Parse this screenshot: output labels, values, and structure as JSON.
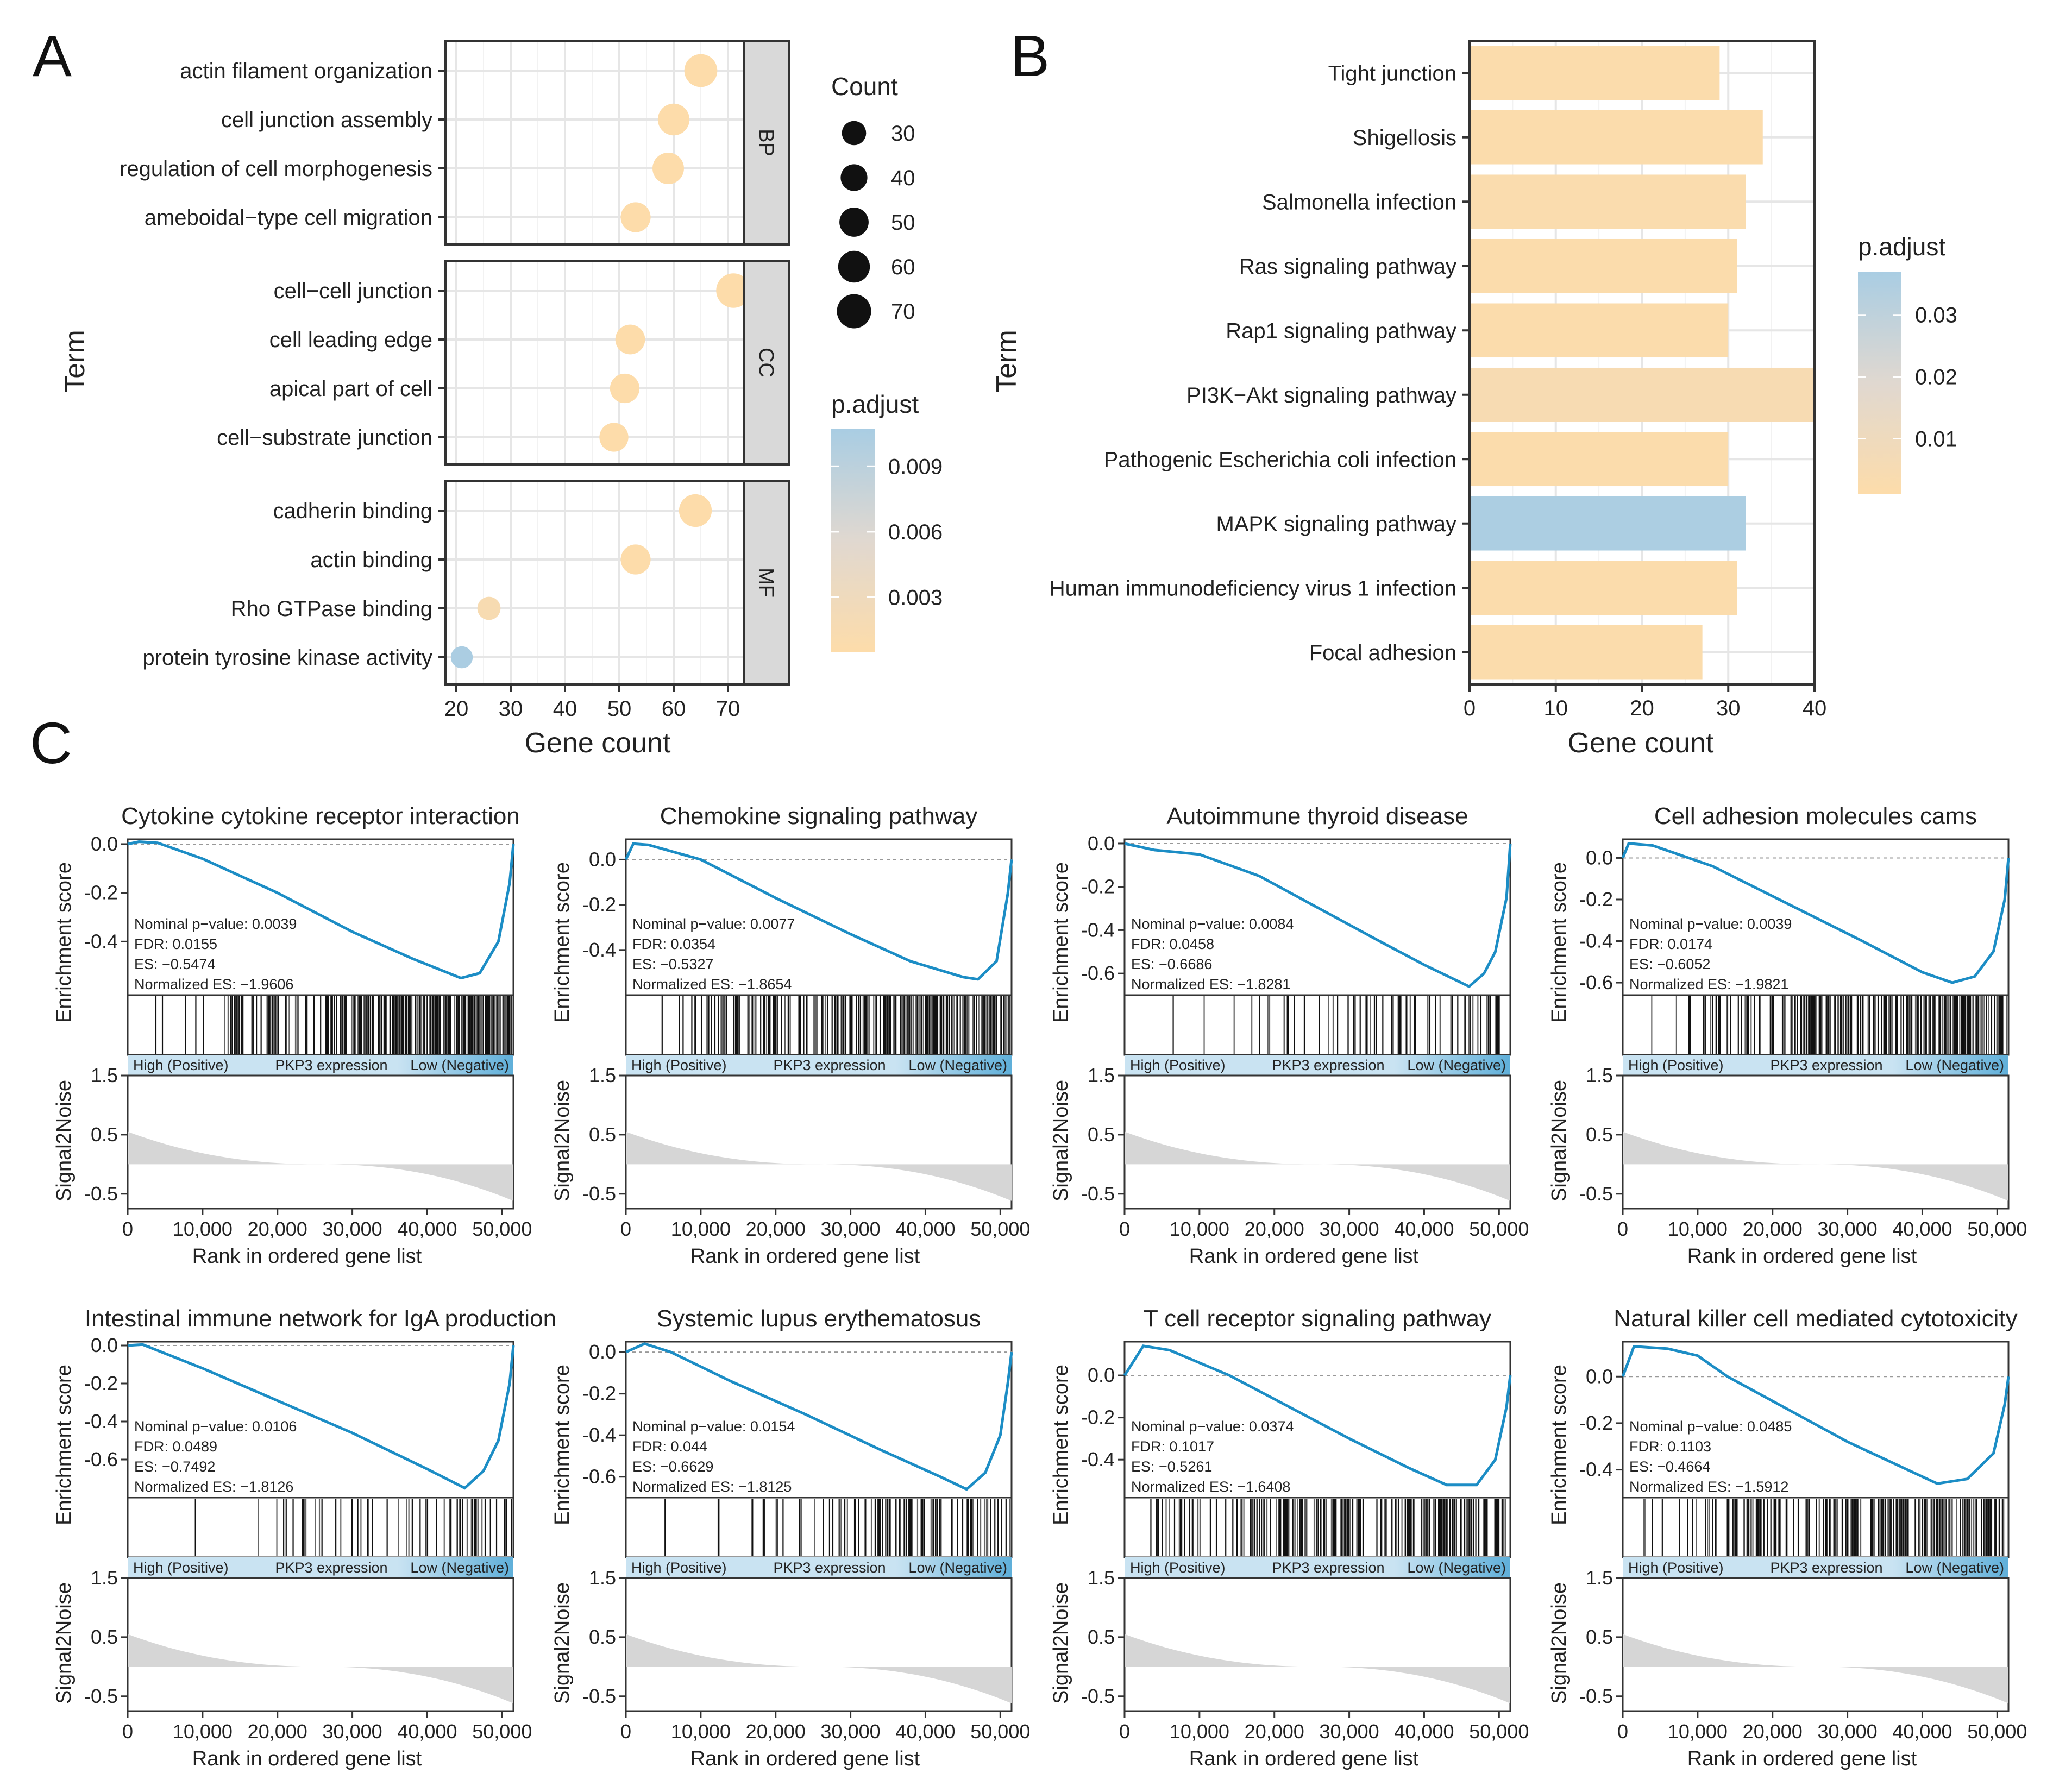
{
  "panels": {
    "A": {
      "label": "A"
    },
    "B": {
      "label": "B"
    },
    "C": {
      "label": "C"
    }
  },
  "colors": {
    "low": "#FDDCAA",
    "mid": "#E0D8D0",
    "high": "#A9CDE3",
    "gsea_line": "#1C8DC5",
    "band": "#C9E3F2",
    "band_end": "#5FAFD9",
    "metric_fill": "#D6D6D6",
    "strip": "#D9D9D9",
    "grid": "#E6E6E6"
  },
  "chart_data": [
    {
      "id": "A",
      "type": "scatter",
      "title": "",
      "xlabel": "Gene count",
      "ylabel": "Term",
      "xlim": [
        18,
        73
      ],
      "xticks": [
        20,
        30,
        40,
        50,
        60,
        70
      ],
      "facets": [
        {
          "name": "BP",
          "terms": [
            "actin filament organization",
            "cell junction assembly",
            "regulation of cell morphogenesis",
            "ameboidal−type cell migration"
          ],
          "values": [
            65,
            60,
            59,
            53
          ],
          "padjust": [
            0.0005,
            0.0005,
            0.0005,
            0.0005
          ]
        },
        {
          "name": "CC",
          "terms": [
            "cell−cell junction",
            "cell leading edge",
            "apical part of cell",
            "cell−substrate junction"
          ],
          "values": [
            71,
            52,
            51,
            49
          ],
          "padjust": [
            0.0005,
            0.0005,
            0.0005,
            0.0005
          ]
        },
        {
          "name": "MF",
          "terms": [
            "cadherin binding",
            "actin binding",
            "Rho GTPase binding",
            "protein tyrosine kinase activity"
          ],
          "values": [
            64,
            53,
            26,
            21
          ],
          "padjust": [
            0.0005,
            0.0005,
            0.0015,
            0.0105
          ]
        }
      ],
      "size_legend": {
        "title": "Count",
        "values": [
          30,
          40,
          50,
          60,
          70
        ]
      },
      "color_legend": {
        "title": "p.adjust",
        "ticks": [
          "0.009",
          "0.006",
          "0.003"
        ],
        "tick_values": [
          0.009,
          0.006,
          0.003
        ],
        "range": [
          0.0005,
          0.0107
        ]
      }
    },
    {
      "id": "B",
      "type": "bar",
      "orientation": "horizontal",
      "xlabel": "Gene count",
      "ylabel": "Term",
      "xlim": [
        0,
        40
      ],
      "xticks": [
        0,
        10,
        20,
        30,
        40
      ],
      "categories": [
        "Tight junction",
        "Shigellosis",
        "Salmonella infection",
        "Ras signaling pathway",
        "Rap1 signaling pathway",
        "PI3K−Akt signaling pathway",
        "Pathogenic Escherichia coli infection",
        "MAPK signaling pathway",
        "Human immunodeficiency virus 1 infection",
        "Focal adhesion"
      ],
      "values": [
        29,
        34,
        32,
        31,
        30,
        40,
        30,
        32,
        31,
        27
      ],
      "padjust": [
        0.002,
        0.002,
        0.003,
        0.002,
        0.002,
        0.005,
        0.002,
        0.036,
        0.002,
        0.002
      ],
      "color_legend": {
        "title": "p.adjust",
        "ticks": [
          "0.03",
          "0.02",
          "0.01"
        ],
        "tick_values": [
          0.03,
          0.02,
          0.01
        ],
        "range": [
          0.001,
          0.037
        ]
      }
    },
    {
      "id": "C",
      "type": "line",
      "xlabel": "Rank in ordered gene list",
      "es_ylabel": "Enrichment score",
      "metric_ylabel": "Signal2Noise",
      "x_ticks": [
        "0",
        "10,000",
        "20,000",
        "30,000",
        "40,000",
        "50,000"
      ],
      "x_tick_values": [
        0,
        10000,
        20000,
        30000,
        40000,
        50000
      ],
      "xlim": [
        0,
        51500
      ],
      "metric_ticks": [
        "1.5",
        "0.5",
        "-0.5"
      ],
      "metric_tick_values": [
        1.5,
        0.5,
        -0.5
      ],
      "metric_ylim": [
        -0.75,
        1.5
      ],
      "band": {
        "left": "High (Positive)",
        "center": "PKP3 expression",
        "right": "Low (Negative)"
      },
      "plots": [
        {
          "title": "Cytokine cytokine receptor interaction",
          "pval": "Nominal p−value: 0.0039",
          "fdr": "FDR: 0.0155",
          "es": "ES: −0.5474",
          "nes": "Normalized ES: −1.9606",
          "ylim": [
            -0.62,
            0.02
          ],
          "yticks": [
            0.0,
            -0.2,
            -0.4
          ],
          "ytick_labels": [
            "0.0",
            "-0.2",
            "-0.4"
          ],
          "curve": [
            [
              0,
              0.0
            ],
            [
              1500,
              0.01
            ],
            [
              4000,
              0.005
            ],
            [
              10000,
              -0.06
            ],
            [
              20000,
              -0.2
            ],
            [
              30000,
              -0.36
            ],
            [
              38000,
              -0.47
            ],
            [
              44500,
              -0.55
            ],
            [
              47000,
              -0.53
            ],
            [
              49500,
              -0.4
            ],
            [
              51000,
              -0.16
            ],
            [
              51500,
              0.0
            ]
          ],
          "hits": 260,
          "hit_skew": 2.6
        },
        {
          "title": "Chemokine signaling pathway",
          "pval": "Nominal p−value: 0.0077",
          "fdr": "FDR: 0.0354",
          "es": "ES: −0.5327",
          "nes": "Normalized ES: −1.8654",
          "ylim": [
            -0.6,
            0.09
          ],
          "yticks": [
            0.0,
            -0.2,
            -0.4
          ],
          "ytick_labels": [
            "0.0",
            "-0.2",
            "-0.4"
          ],
          "curve": [
            [
              0,
              0.0
            ],
            [
              1000,
              0.07
            ],
            [
              3000,
              0.065
            ],
            [
              10000,
              0.0
            ],
            [
              20000,
              -0.17
            ],
            [
              30000,
              -0.33
            ],
            [
              38000,
              -0.45
            ],
            [
              45000,
              -0.52
            ],
            [
              47000,
              -0.53
            ],
            [
              49500,
              -0.45
            ],
            [
              51000,
              -0.15
            ],
            [
              51500,
              0.0
            ]
          ],
          "hits": 240,
          "hit_skew": 2.2
        },
        {
          "title": "Autoimmune thyroid disease",
          "pval": "Nominal p−value: 0.0084",
          "fdr": "FDR: 0.0458",
          "es": "ES: −0.6686",
          "nes": "Normalized ES: −1.8281",
          "ylim": [
            -0.7,
            0.02
          ],
          "yticks": [
            0.0,
            -0.2,
            -0.4,
            -0.6
          ],
          "ytick_labels": [
            "0.0",
            "-0.2",
            "-0.4",
            "-0.6"
          ],
          "curve": [
            [
              0,
              0.0
            ],
            [
              4000,
              -0.03
            ],
            [
              10000,
              -0.05
            ],
            [
              18000,
              -0.15
            ],
            [
              26000,
              -0.3
            ],
            [
              34000,
              -0.45
            ],
            [
              40000,
              -0.56
            ],
            [
              46000,
              -0.66
            ],
            [
              48000,
              -0.6
            ],
            [
              49500,
              -0.5
            ],
            [
              51000,
              -0.25
            ],
            [
              51500,
              0.0
            ]
          ],
          "hits": 70,
          "hit_skew": 2.4
        },
        {
          "title": "Cell adhesion molecules cams",
          "pval": "Nominal p−value: 0.0039",
          "fdr": "FDR: 0.0174",
          "es": "ES: −0.6052",
          "nes": "Normalized ES: −1.9821",
          "ylim": [
            -0.66,
            0.09
          ],
          "yticks": [
            0.0,
            -0.2,
            -0.4,
            -0.6
          ],
          "ytick_labels": [
            "0.0",
            "-0.2",
            "-0.4",
            "-0.6"
          ],
          "curve": [
            [
              0,
              0.0
            ],
            [
              800,
              0.07
            ],
            [
              4000,
              0.06
            ],
            [
              12000,
              -0.04
            ],
            [
              22000,
              -0.22
            ],
            [
              32000,
              -0.4
            ],
            [
              40000,
              -0.55
            ],
            [
              44000,
              -0.6
            ],
            [
              47000,
              -0.57
            ],
            [
              49500,
              -0.45
            ],
            [
              51000,
              -0.2
            ],
            [
              51500,
              0.0
            ]
          ],
          "hits": 220,
          "hit_skew": 2.0
        },
        {
          "title": "Intestinal immune network for IgA production",
          "pval": "Nominal p−value: 0.0106",
          "fdr": "FDR: 0.0489",
          "es": "ES: −0.7492",
          "nes": "Normalized ES: −1.8126",
          "ylim": [
            -0.8,
            0.02
          ],
          "yticks": [
            0.0,
            -0.2,
            -0.4,
            -0.6
          ],
          "ytick_labels": [
            "0.0",
            "-0.2",
            "-0.4",
            "-0.6"
          ],
          "curve": [
            [
              0,
              0.0
            ],
            [
              2000,
              0.005
            ],
            [
              10000,
              -0.12
            ],
            [
              20000,
              -0.29
            ],
            [
              30000,
              -0.46
            ],
            [
              40000,
              -0.65
            ],
            [
              45000,
              -0.75
            ],
            [
              47500,
              -0.66
            ],
            [
              49500,
              -0.5
            ],
            [
              51000,
              -0.2
            ],
            [
              51500,
              0.0
            ]
          ],
          "hits": 60,
          "hit_skew": 2.8
        },
        {
          "title": "Systemic lupus erythematosus",
          "pval": "Nominal p−value: 0.0154",
          "fdr": "FDR: 0.044",
          "es": "ES: −0.6629",
          "nes": "Normalized ES: −1.8125",
          "ylim": [
            -0.7,
            0.05
          ],
          "yticks": [
            0.0,
            -0.2,
            -0.4,
            -0.6
          ],
          "ytick_labels": [
            "0.0",
            "-0.2",
            "-0.4",
            "-0.6"
          ],
          "curve": [
            [
              0,
              0.0
            ],
            [
              2500,
              0.04
            ],
            [
              6000,
              0.0
            ],
            [
              14000,
              -0.14
            ],
            [
              24000,
              -0.3
            ],
            [
              34000,
              -0.47
            ],
            [
              42000,
              -0.6
            ],
            [
              45500,
              -0.66
            ],
            [
              48000,
              -0.58
            ],
            [
              50000,
              -0.4
            ],
            [
              51000,
              -0.15
            ],
            [
              51500,
              0.0
            ]
          ],
          "hits": 90,
          "hit_skew": 2.6
        },
        {
          "title": "T cell receptor signaling pathway",
          "pval": "Nominal p−value: 0.0374",
          "fdr": "FDR: 0.1017",
          "es": "ES: −0.5261",
          "nes": "Normalized ES: −1.6408",
          "ylim": [
            -0.58,
            0.16
          ],
          "yticks": [
            0.0,
            -0.2,
            -0.4
          ],
          "ytick_labels": [
            "0.0",
            "-0.2",
            "-0.4"
          ],
          "curve": [
            [
              0,
              0.0
            ],
            [
              2500,
              0.14
            ],
            [
              6000,
              0.12
            ],
            [
              14000,
              0.0
            ],
            [
              22000,
              -0.15
            ],
            [
              30000,
              -0.3
            ],
            [
              38000,
              -0.44
            ],
            [
              43000,
              -0.52
            ],
            [
              47000,
              -0.52
            ],
            [
              49500,
              -0.4
            ],
            [
              51000,
              -0.15
            ],
            [
              51500,
              0.0
            ]
          ],
          "hits": 210,
          "hit_skew": 1.7
        },
        {
          "title": "Natural killer cell mediated cytotoxicity",
          "pval": "Nominal p−value: 0.0485",
          "fdr": "FDR: 0.1103",
          "es": "ES: −0.4664",
          "nes": "Normalized ES: −1.5912",
          "ylim": [
            -0.52,
            0.15
          ],
          "yticks": [
            0.0,
            -0.2,
            -0.4
          ],
          "ytick_labels": [
            "0.0",
            "-0.2",
            "-0.4"
          ],
          "curve": [
            [
              0,
              0.0
            ],
            [
              1500,
              0.13
            ],
            [
              6000,
              0.12
            ],
            [
              10000,
              0.09
            ],
            [
              14000,
              0.0
            ],
            [
              22000,
              -0.14
            ],
            [
              30000,
              -0.28
            ],
            [
              38000,
              -0.4
            ],
            [
              42000,
              -0.46
            ],
            [
              46000,
              -0.44
            ],
            [
              49500,
              -0.33
            ],
            [
              51000,
              -0.12
            ],
            [
              51500,
              0.0
            ]
          ],
          "hits": 200,
          "hit_skew": 1.7
        }
      ]
    }
  ]
}
